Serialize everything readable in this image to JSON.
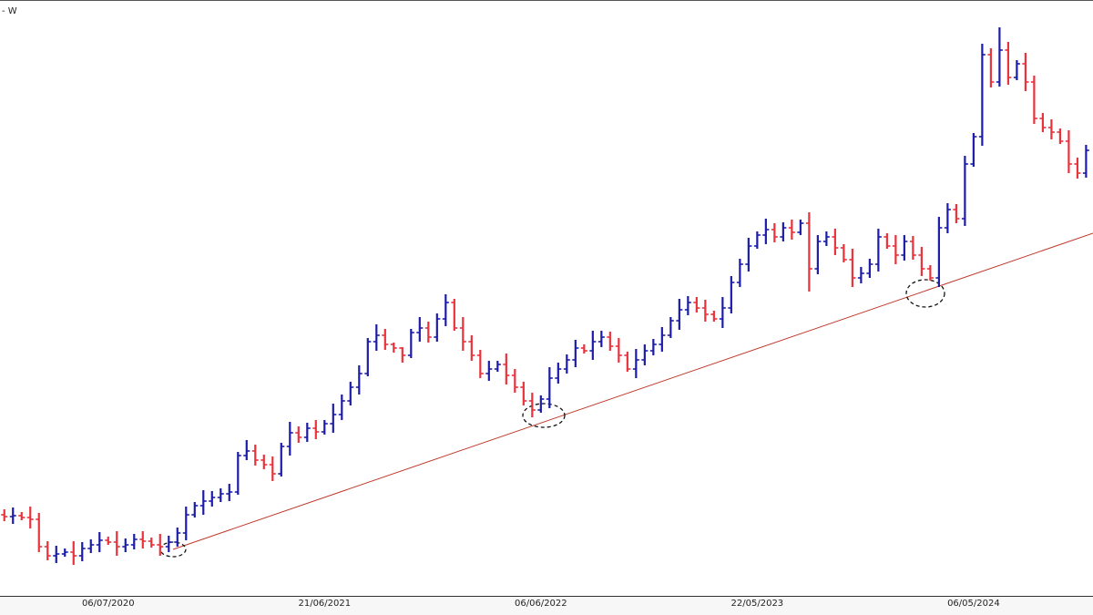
{
  "chart_data": {
    "type": "ohlc",
    "title": "- W",
    "categories": [
      null,
      null,
      null,
      null,
      null,
      null,
      null,
      null,
      null,
      null,
      null,
      null,
      "06/07/2020",
      null,
      null,
      null,
      null,
      null,
      null,
      null,
      null,
      null,
      null,
      null,
      null,
      null,
      null,
      null,
      null,
      null,
      null,
      null,
      null,
      null,
      null,
      null,
      null,
      "21/06/2021",
      null,
      null,
      null,
      null,
      null,
      null,
      null,
      null,
      null,
      null,
      null,
      null,
      null,
      null,
      null,
      null,
      null,
      null,
      null,
      null,
      null,
      null,
      null,
      null,
      "06/06/2022",
      null,
      null,
      null,
      null,
      null,
      null,
      null,
      null,
      null,
      null,
      null,
      null,
      null,
      null,
      null,
      null,
      null,
      null,
      null,
      null,
      null,
      null,
      null,
      null,
      "22/05/2023",
      null,
      null,
      null,
      null,
      null,
      null,
      null,
      null,
      null,
      null,
      null,
      null,
      null,
      null,
      null,
      null,
      null,
      null,
      null,
      null,
      null,
      null,
      null,
      null,
      "06/05/2024",
      null,
      null,
      null,
      null,
      null,
      null,
      null,
      null,
      null,
      null,
      null,
      null,
      null
    ],
    "open": [
      85,
      83,
      84,
      82,
      80,
      50,
      40,
      42,
      44,
      40,
      48,
      52,
      57,
      55,
      50,
      52,
      58,
      56,
      52,
      50,
      55,
      65,
      85,
      95,
      100,
      104,
      108,
      110,
      150,
      155,
      145,
      140,
      130,
      160,
      175,
      170,
      180,
      176,
      185,
      195,
      210,
      225,
      240,
      275,
      282,
      272,
      268,
      260,
      285,
      290,
      280,
      300,
      318,
      290,
      275,
      260,
      240,
      245,
      250,
      238,
      225,
      210,
      200,
      212,
      235,
      245,
      255,
      268,
      265,
      275,
      280,
      270,
      260,
      245,
      255,
      265,
      272,
      282,
      298,
      310,
      318,
      312,
      305,
      300,
      312,
      340,
      360,
      380,
      392,
      398,
      390,
      400,
      395,
      405,
      355,
      385,
      390,
      378,
      365,
      345,
      350,
      360,
      390,
      380,
      370,
      385,
      370,
      355,
      345,
      400,
      420,
      410,
      470,
      500,
      590,
      560,
      595,
      565,
      580,
      560,
      520,
      510,
      505,
      495,
      470,
      460
    ],
    "high": [
      91,
      93,
      88,
      94,
      87,
      56,
      51,
      48,
      56,
      55,
      58,
      66,
      61,
      67,
      59,
      64,
      67,
      60,
      64,
      62,
      71,
      94,
      99,
      112,
      111,
      114,
      119,
      154,
      167,
      162,
      151,
      149,
      164,
      187,
      182,
      186,
      189,
      189,
      207,
      217,
      231,
      249,
      279,
      294,
      289,
      274,
      269,
      289,
      302,
      297,
      306,
      327,
      322,
      302,
      282,
      266,
      254,
      254,
      262,
      245,
      231,
      219,
      216,
      247,
      252,
      261,
      277,
      272,
      287,
      287,
      286,
      279,
      264,
      267,
      272,
      278,
      291,
      302,
      322,
      325,
      324,
      321,
      309,
      324,
      347,
      366,
      389,
      396,
      410,
      405,
      406,
      409,
      409,
      417,
      392,
      396,
      399,
      382,
      377,
      357,
      366,
      399,
      394,
      392,
      392,
      391,
      379,
      359,
      412,
      427,
      426,
      479,
      504,
      602,
      597,
      620,
      604,
      584,
      592,
      567,
      526,
      519,
      509,
      507,
      477,
      491
    ],
    "low": [
      78,
      75,
      79,
      70,
      44,
      35,
      32,
      39,
      30,
      34,
      43,
      44,
      52,
      40,
      44,
      47,
      48,
      49,
      40,
      44,
      50,
      57,
      82,
      85,
      94,
      99,
      100,
      107,
      145,
      139,
      135,
      122,
      127,
      150,
      164,
      165,
      168,
      173,
      175,
      189,
      205,
      217,
      237,
      265,
      266,
      263,
      252,
      257,
      275,
      274,
      275,
      292,
      287,
      265,
      254,
      235,
      232,
      242,
      228,
      219,
      205,
      192,
      197,
      202,
      229,
      240,
      247,
      262,
      255,
      269,
      265,
      252,
      242,
      235,
      249,
      260,
      264,
      279,
      288,
      304,
      307,
      297,
      297,
      290,
      306,
      335,
      352,
      377,
      382,
      384,
      385,
      387,
      392,
      330,
      349,
      380,
      370,
      362,
      335,
      339,
      345,
      352,
      377,
      360,
      364,
      365,
      347,
      342,
      335,
      394,
      405,
      402,
      467,
      490,
      554,
      555,
      557,
      562,
      550,
      514,
      505,
      497,
      492,
      460,
      454,
      455
    ],
    "close": [
      83,
      84,
      82,
      80,
      50,
      40,
      42,
      44,
      40,
      48,
      52,
      57,
      55,
      50,
      52,
      58,
      56,
      52,
      50,
      55,
      65,
      85,
      95,
      100,
      104,
      108,
      110,
      150,
      155,
      145,
      140,
      130,
      160,
      175,
      170,
      180,
      176,
      185,
      195,
      210,
      225,
      240,
      275,
      282,
      272,
      268,
      260,
      285,
      290,
      280,
      300,
      318,
      290,
      275,
      260,
      240,
      245,
      250,
      238,
      225,
      210,
      200,
      212,
      235,
      245,
      255,
      268,
      265,
      275,
      280,
      270,
      260,
      245,
      255,
      265,
      272,
      282,
      298,
      310,
      318,
      312,
      305,
      300,
      312,
      340,
      360,
      380,
      392,
      398,
      390,
      400,
      395,
      405,
      355,
      385,
      390,
      378,
      365,
      345,
      350,
      360,
      390,
      380,
      370,
      385,
      370,
      355,
      345,
      400,
      420,
      410,
      470,
      500,
      590,
      560,
      595,
      565,
      580,
      560,
      520,
      510,
      505,
      495,
      470,
      460,
      485
    ],
    "up_color": "#1c1ca8",
    "down_color": "#e8323c",
    "ylim": [
      0,
      650
    ]
  }
}
